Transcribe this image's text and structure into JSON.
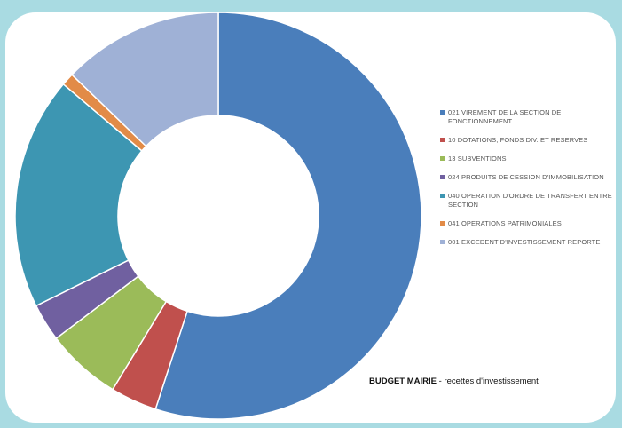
{
  "chart_data": {
    "type": "pie",
    "title": "BUDGET MAIRIE - recettes d'investissement",
    "title_bold": "BUDGET MAIRIE",
    "title_rest": " - recettes d'investissement",
    "legend_position": "right",
    "categories": [
      "021 VIREMENT DE LA SECTION DE FONCTIONNEMENT",
      "10 DOTATIONS, FONDS DIV. ET RESERVES",
      "13 SUBVENTIONS",
      "024 PRODUITS DE CESSION D'IMMOBILISATION",
      "040 OPERATION D'ORDRE DE TRANSFERT ENTRE SECTION",
      "041 OPERATIONS PATRIMONIALES",
      "001 EXCEDENT D'INVESTISSEMENT REPORTE"
    ],
    "values": [
      55.0,
      3.7,
      6.0,
      3.0,
      18.5,
      1.0,
      12.8
    ],
    "colors": [
      "#4a7ebb",
      "#c0504d",
      "#9bbb59",
      "#7060a0",
      "#3d96b2",
      "#e28b47",
      "#9fb1d6"
    ]
  }
}
